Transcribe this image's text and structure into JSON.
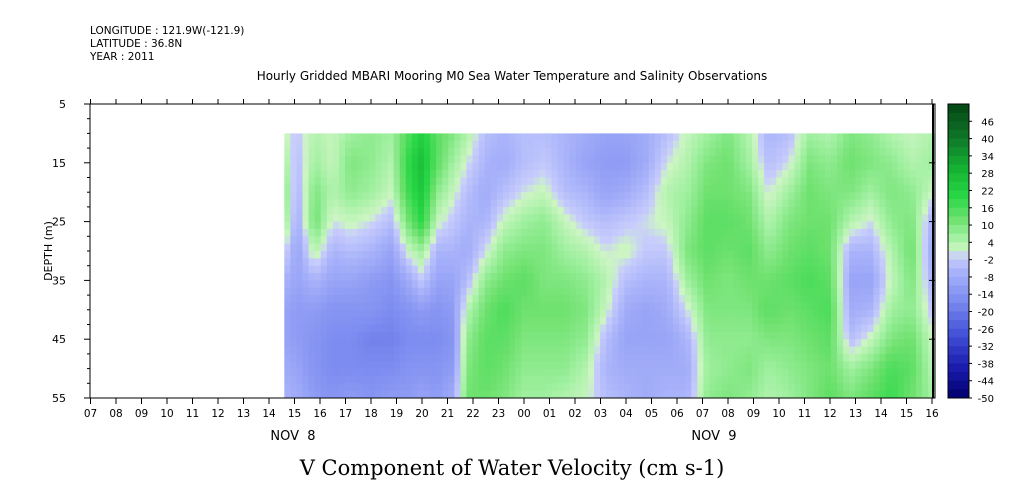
{
  "header": {
    "longitude": "LONGITUDE : 121.9W(-121.9)",
    "latitude": "LATITUDE : 36.8N",
    "year": "YEAR : 2011"
  },
  "chart_data": {
    "type": "heatmap",
    "title": "Hourly Gridded MBARI Mooring M0 Sea Water Temperature and Salinity Observations",
    "xlabel": "V Component of Water Velocity (cm s-1)",
    "ylabel": "DEPTH (m)",
    "y_ticks": [
      "5",
      "15",
      "25",
      "35",
      "45",
      "55"
    ],
    "ylim": [
      5,
      55
    ],
    "y_inverted": true,
    "x_tick_labels": [
      "07",
      "08",
      "09",
      "10",
      "11",
      "12",
      "13",
      "14",
      "15",
      "16",
      "17",
      "18",
      "19",
      "20",
      "21",
      "22",
      "23",
      "00",
      "01",
      "02",
      "03",
      "04",
      "05",
      "06",
      "07",
      "08",
      "09",
      "10",
      "11",
      "12",
      "13",
      "14",
      "15",
      "16"
    ],
    "date_labels": [
      {
        "text": "NOV  8",
        "at_tick": 7
      },
      {
        "text": "NOV  9",
        "at_tick": 24
      }
    ],
    "data_start_tick": 7.6,
    "data_depth_range": [
      10,
      55
    ],
    "colorbar": {
      "labels": [
        "46",
        "40",
        "34",
        "28",
        "22",
        "16",
        "10",
        "4",
        "-2",
        "-8",
        "-14",
        "-20",
        "-26",
        "-32",
        "-38",
        "-44",
        "-50"
      ],
      "range": [
        -50,
        52
      ],
      "step": 3
    },
    "depths": [
      10,
      15,
      20,
      25,
      30,
      35,
      40,
      45,
      50,
      55
    ],
    "columns": [
      {
        "x": 7.6,
        "v": [
          2,
          6,
          10,
          8,
          0,
          -6,
          -10,
          -10,
          -8,
          -6
        ]
      },
      {
        "x": 8.1,
        "v": [
          -2,
          -4,
          -6,
          -8,
          -10,
          -10,
          -12,
          -12,
          -10,
          -8
        ]
      },
      {
        "x": 8.8,
        "v": [
          4,
          6,
          10,
          12,
          4,
          -6,
          -12,
          -14,
          -14,
          -12
        ]
      },
      {
        "x": 9.5,
        "v": [
          2,
          2,
          4,
          0,
          -6,
          -10,
          -14,
          -16,
          -16,
          -14
        ]
      },
      {
        "x": 10.2,
        "v": [
          6,
          10,
          8,
          2,
          -4,
          -10,
          -14,
          -16,
          -16,
          -12
        ]
      },
      {
        "x": 11.0,
        "v": [
          8,
          8,
          6,
          0,
          -6,
          -12,
          -14,
          -18,
          -16,
          -14
        ]
      },
      {
        "x": 11.8,
        "v": [
          6,
          4,
          2,
          -4,
          -10,
          -14,
          -16,
          -18,
          -16,
          -12
        ]
      },
      {
        "x": 12.5,
        "v": [
          16,
          20,
          18,
          12,
          2,
          -8,
          -14,
          -16,
          -14,
          -12
        ]
      },
      {
        "x": 13.0,
        "v": [
          22,
          26,
          24,
          20,
          6,
          -2,
          -12,
          -16,
          -14,
          -10
        ]
      },
      {
        "x": 13.6,
        "v": [
          14,
          14,
          8,
          2,
          -6,
          -10,
          -14,
          -16,
          -14,
          -12
        ]
      },
      {
        "x": 14.2,
        "v": [
          10,
          6,
          2,
          -2,
          -6,
          -10,
          -12,
          -14,
          -12,
          -8
        ]
      },
      {
        "x": 14.8,
        "v": [
          4,
          0,
          -4,
          -6,
          -8,
          -4,
          4,
          8,
          10,
          12
        ]
      },
      {
        "x": 15.5,
        "v": [
          -4,
          -6,
          -8,
          -6,
          0,
          8,
          12,
          14,
          14,
          12
        ]
      },
      {
        "x": 16.2,
        "v": [
          -6,
          -8,
          -4,
          2,
          8,
          12,
          16,
          14,
          12,
          10
        ]
      },
      {
        "x": 17.0,
        "v": [
          -4,
          -4,
          0,
          6,
          10,
          14,
          12,
          10,
          8,
          6
        ]
      },
      {
        "x": 17.8,
        "v": [
          -4,
          -2,
          2,
          8,
          10,
          10,
          12,
          10,
          8,
          6
        ]
      },
      {
        "x": 18.6,
        "v": [
          -6,
          -6,
          -4,
          2,
          6,
          10,
          12,
          10,
          8,
          4
        ]
      },
      {
        "x": 19.4,
        "v": [
          -8,
          -10,
          -6,
          -2,
          4,
          8,
          10,
          8,
          4,
          2
        ]
      },
      {
        "x": 20.2,
        "v": [
          -10,
          -12,
          -10,
          -4,
          0,
          4,
          2,
          -4,
          -6,
          -4
        ]
      },
      {
        "x": 21.0,
        "v": [
          -10,
          -12,
          -8,
          -2,
          2,
          -4,
          -8,
          -10,
          -8,
          -6
        ]
      },
      {
        "x": 21.8,
        "v": [
          -8,
          -8,
          -4,
          0,
          -2,
          -6,
          -10,
          -10,
          -8,
          -8
        ]
      },
      {
        "x": 22.6,
        "v": [
          -4,
          0,
          4,
          2,
          -2,
          -6,
          -8,
          -10,
          -8,
          -6
        ]
      },
      {
        "x": 23.4,
        "v": [
          2,
          4,
          6,
          8,
          10,
          6,
          0,
          -6,
          -8,
          -6
        ]
      },
      {
        "x": 24.2,
        "v": [
          6,
          10,
          12,
          14,
          14,
          12,
          10,
          8,
          6,
          8
        ]
      },
      {
        "x": 25.0,
        "v": [
          10,
          12,
          12,
          14,
          12,
          10,
          10,
          8,
          8,
          10
        ]
      },
      {
        "x": 25.8,
        "v": [
          4,
          6,
          10,
          12,
          14,
          12,
          10,
          8,
          10,
          8
        ]
      },
      {
        "x": 26.6,
        "v": [
          -6,
          -4,
          0,
          4,
          8,
          12,
          14,
          10,
          6,
          4
        ]
      },
      {
        "x": 27.4,
        "v": [
          -4,
          0,
          6,
          10,
          12,
          14,
          12,
          10,
          8,
          6
        ]
      },
      {
        "x": 28.2,
        "v": [
          6,
          10,
          12,
          12,
          14,
          16,
          14,
          12,
          10,
          10
        ]
      },
      {
        "x": 29.0,
        "v": [
          4,
          8,
          10,
          12,
          12,
          14,
          16,
          14,
          12,
          14
        ]
      },
      {
        "x": 29.8,
        "v": [
          10,
          12,
          10,
          4,
          -6,
          -10,
          -8,
          -4,
          6,
          10
        ]
      },
      {
        "x": 30.6,
        "v": [
          8,
          10,
          6,
          0,
          -6,
          -10,
          -6,
          2,
          10,
          14
        ]
      },
      {
        "x": 31.4,
        "v": [
          4,
          8,
          10,
          8,
          4,
          2,
          6,
          10,
          16,
          18
        ]
      },
      {
        "x": 32.2,
        "v": [
          2,
          4,
          8,
          10,
          12,
          10,
          8,
          12,
          14,
          12
        ]
      },
      {
        "x": 33.0,
        "v": [
          4,
          6,
          2,
          -6,
          -8,
          -6,
          -2,
          2,
          4,
          6
        ]
      },
      {
        "x": 33.5,
        "v": [
          -6,
          -8,
          -10,
          -8,
          -6,
          -4,
          -2,
          0,
          2,
          4
        ]
      }
    ]
  }
}
